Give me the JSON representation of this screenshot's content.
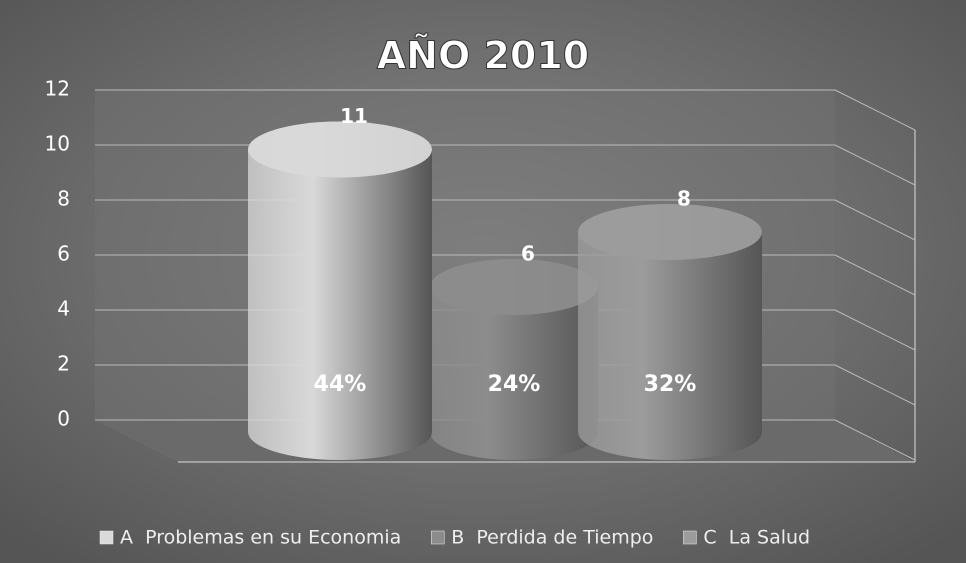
{
  "chart_data": {
    "type": "bar",
    "title": "AÑO  2010",
    "ylim": [
      0,
      12
    ],
    "yticks": [
      0,
      2,
      4,
      6,
      8,
      10,
      12
    ],
    "grid": true,
    "legend": "bottom",
    "series": [
      {
        "name": "A  Problemas en su Economia",
        "color": "#d9d9d9",
        "values": [
          11
        ],
        "percent": [
          44
        ],
        "percent_labels": [
          "44%"
        ]
      },
      {
        "name": "B  Perdida de Tiempo",
        "color": "#8c8c8c",
        "values": [
          6
        ],
        "percent": [
          24
        ],
        "percent_labels": [
          "24%"
        ]
      },
      {
        "name": "C  La Salud",
        "color": "#9c9c9c",
        "values": [
          8
        ],
        "percent": [
          32
        ],
        "percent_labels": [
          "32%"
        ]
      }
    ]
  }
}
